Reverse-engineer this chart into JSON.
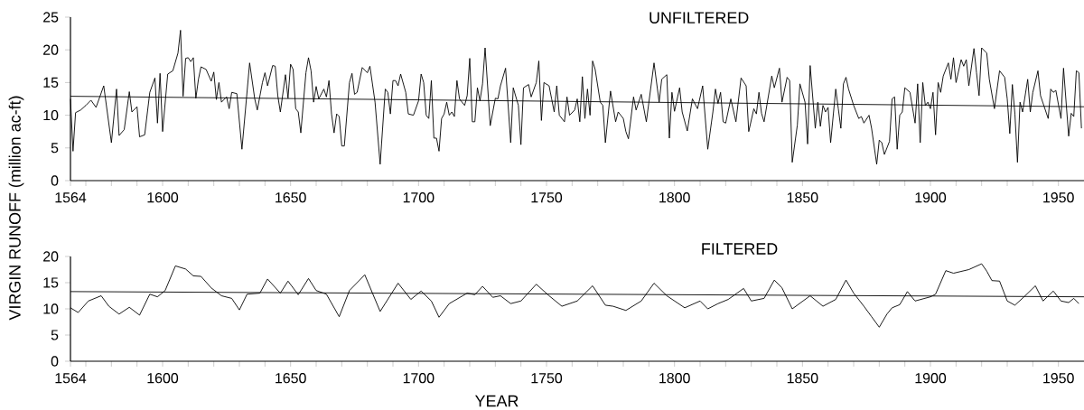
{
  "chart_data": [
    {
      "type": "line",
      "title": "UNFILTERED",
      "ylabel": "VIRGIN RUNOFF (million ac-ft)",
      "xlim": [
        1564,
        1960
      ],
      "ylim": [
        0,
        25
      ],
      "xticks": [
        1564,
        {
          "value": 1570,
          "label": null
        },
        {
          "value": 1580,
          "label": null
        },
        {
          "value": 1590,
          "label": null
        },
        1600,
        {
          "value": 1610,
          "label": null
        },
        {
          "value": 1620,
          "label": null
        },
        {
          "value": 1630,
          "label": null
        },
        {
          "value": 1640,
          "label": null
        },
        1650,
        {
          "value": 1660,
          "label": null
        },
        {
          "value": 1670,
          "label": null
        },
        {
          "value": 1680,
          "label": null
        },
        {
          "value": 1690,
          "label": null
        },
        1700,
        {
          "value": 1710,
          "label": null
        },
        {
          "value": 1720,
          "label": null
        },
        {
          "value": 1730,
          "label": null
        },
        {
          "value": 1740,
          "label": null
        },
        1750,
        {
          "value": 1760,
          "label": null
        },
        {
          "value": 1770,
          "label": null
        },
        {
          "value": 1780,
          "label": null
        },
        {
          "value": 1790,
          "label": null
        },
        1800,
        {
          "value": 1810,
          "label": null
        },
        {
          "value": 1820,
          "label": null
        },
        {
          "value": 1830,
          "label": null
        },
        {
          "value": 1840,
          "label": null
        },
        1850,
        {
          "value": 1860,
          "label": null
        },
        {
          "value": 1870,
          "label": null
        },
        {
          "value": 1880,
          "label": null
        },
        {
          "value": 1890,
          "label": null
        },
        1900,
        {
          "value": 1910,
          "label": null
        },
        {
          "value": 1920,
          "label": null
        },
        {
          "value": 1930,
          "label": null
        },
        {
          "value": 1940,
          "label": null
        },
        1950
      ],
      "yticks": [
        0,
        5,
        10,
        15,
        20,
        25
      ],
      "marker": "none",
      "line_style": "solid",
      "series": [
        {
          "color": "#000000",
          "x": [
            1564,
            1565,
            1566,
            1568,
            1570,
            1572,
            1574,
            1577,
            1580,
            1582,
            1583,
            1585,
            1587,
            1588,
            1590,
            1591,
            1593,
            1595,
            1597,
            1598,
            1599,
            1600,
            1602,
            1604,
            1606,
            1607,
            1608,
            1609,
            1610,
            1611,
            1612,
            1613,
            1614,
            1615,
            1617,
            1619,
            1620,
            1621,
            1622,
            1623,
            1625,
            1626,
            1627,
            1629,
            1631,
            1634,
            1636,
            1637,
            1639,
            1640,
            1641,
            1643,
            1644,
            1645,
            1646,
            1648,
            1649,
            1650,
            1651,
            1652,
            1653,
            1654,
            1656,
            1657,
            1658,
            1659,
            1660,
            1661,
            1663,
            1664,
            1665,
            1666,
            1667,
            1668,
            1669,
            1670,
            1671,
            1673,
            1674,
            1675,
            1676,
            1678,
            1680,
            1681,
            1683,
            1685,
            1687,
            1688,
            1689,
            1690,
            1691,
            1692,
            1693,
            1695,
            1696,
            1698,
            1700,
            1701,
            1702,
            1703,
            1704,
            1705,
            1706,
            1707,
            1708,
            1709,
            1710,
            1711,
            1712,
            1713,
            1714,
            1715,
            1716,
            1718,
            1719,
            1720,
            1721,
            1722,
            1723,
            1724,
            1725,
            1726,
            1728,
            1730,
            1731,
            1732,
            1734,
            1736,
            1737,
            1739,
            1740,
            1741,
            1743,
            1744,
            1746,
            1747,
            1748,
            1749,
            1751,
            1752,
            1753,
            1754,
            1755,
            1757,
            1758,
            1759,
            1761,
            1762,
            1763,
            1764,
            1765,
            1766,
            1767,
            1768,
            1769,
            1771,
            1772,
            1773,
            1775,
            1777,
            1778,
            1780,
            1781,
            1782,
            1784,
            1785,
            1787,
            1789,
            1790,
            1792,
            1794,
            1795,
            1797,
            1798,
            1799,
            1800,
            1802,
            1803,
            1805,
            1807,
            1809,
            1811,
            1813,
            1815,
            1816,
            1817,
            1818,
            1819,
            1820,
            1822,
            1824,
            1826,
            1828,
            1829,
            1831,
            1832,
            1833,
            1834,
            1835,
            1838,
            1839,
            1841,
            1842,
            1844,
            1845,
            1846,
            1848,
            1849,
            1851,
            1852,
            1853,
            1855,
            1856,
            1857,
            1858,
            1859,
            1860,
            1861,
            1863,
            1864,
            1865,
            1866,
            1867,
            1868,
            1870,
            1872,
            1873,
            1874,
            1876,
            1877,
            1879,
            1880,
            1881,
            1882,
            1884,
            1885,
            1886,
            1887,
            1888,
            1889,
            1890,
            1892,
            1894,
            1895,
            1896,
            1897,
            1898,
            1899,
            1900,
            1901,
            1902,
            1903,
            1904,
            1905,
            1907,
            1908,
            1909,
            1910,
            1912,
            1913,
            1914,
            1915,
            1917,
            1918,
            1919,
            1920,
            1922,
            1923,
            1925,
            1927,
            1929,
            1930,
            1931,
            1932,
            1933,
            1934,
            1935,
            1936,
            1938,
            1939,
            1940,
            1942,
            1943,
            1946,
            1947,
            1948,
            1949,
            1951,
            1952,
            1954,
            1955,
            1956,
            1957,
            1958,
            1959
          ],
          "values": [
            12.5,
            4.5,
            10.4,
            10.8,
            11.5,
            12.3,
            11.2,
            14.5,
            5.8,
            14.0,
            6.9,
            7.8,
            13.6,
            10.5,
            11.3,
            6.7,
            7.0,
            13.5,
            15.7,
            8.8,
            16.4,
            7.5,
            16.3,
            16.8,
            19.5,
            23.0,
            12.9,
            18.7,
            18.8,
            18.2,
            18.8,
            12.6,
            15.5,
            17.4,
            17.0,
            15.2,
            16.6,
            12.4,
            15.0,
            12.0,
            12.8,
            11.0,
            13.5,
            13.3,
            4.8,
            18.0,
            12.5,
            10.8,
            15.0,
            16.5,
            14.5,
            17.6,
            17.5,
            13.0,
            10.5,
            16.2,
            12.6,
            17.8,
            17.0,
            11.0,
            10.5,
            7.3,
            16.5,
            18.8,
            16.8,
            12.0,
            14.4,
            12.5,
            14.0,
            12.8,
            15.3,
            10.2,
            7.3,
            10.2,
            9.8,
            5.3,
            5.3,
            15.0,
            16.4,
            13.2,
            13.5,
            17.3,
            16.5,
            17.5,
            12.0,
            2.5,
            14.0,
            13.5,
            10.2,
            15.3,
            15.3,
            14.5,
            16.3,
            13.5,
            10.2,
            10.0,
            12.2,
            16.3,
            15.0,
            10.0,
            9.5,
            15.3,
            6.5,
            6.5,
            4.5,
            9.5,
            10.2,
            12.0,
            10.0,
            10.5,
            9.8,
            15.3,
            12.5,
            11.5,
            13.0,
            18.7,
            9.0,
            9.0,
            14.2,
            12.2,
            14.8,
            20.3,
            8.4,
            12.6,
            12.5,
            14.5,
            17.2,
            5.8,
            14.2,
            11.5,
            5.5,
            14.2,
            14.7,
            12.8,
            15.0,
            18.3,
            9.2,
            15.0,
            14.5,
            12.5,
            10.5,
            14.5,
            10.0,
            9.0,
            12.8,
            10.0,
            10.8,
            12.5,
            9.0,
            15.9,
            9.5,
            14.0,
            10.0,
            18.3,
            17.0,
            12.0,
            11.5,
            5.8,
            13.7,
            9.0,
            10.5,
            9.5,
            7.5,
            6.4,
            12.8,
            10.8,
            13.2,
            9.0,
            12.0,
            18.0,
            12.0,
            15.5,
            16.2,
            6.5,
            13.5,
            10.6,
            14.2,
            10.5,
            7.6,
            12.5,
            11.0,
            14.5,
            4.8,
            10.5,
            14.0,
            11.8,
            13.5,
            9.0,
            8.8,
            12.5,
            9.0,
            15.7,
            14.5,
            7.5,
            11.0,
            10.2,
            13.5,
            10.3,
            9.0,
            16.0,
            14.2,
            17.2,
            12.0,
            15.8,
            15.3,
            2.8,
            8.5,
            14.8,
            12.0,
            5.6,
            17.6,
            8.0,
            12.0,
            8.3,
            11.5,
            10.5,
            11.2,
            5.8,
            14.0,
            11.0,
            8.0,
            14.8,
            15.8,
            14.0,
            11.5,
            9.5,
            9.8,
            8.8,
            10.0,
            8.0,
            2.5,
            6.2,
            5.8,
            4.0,
            6.0,
            12.5,
            12.8,
            4.8,
            10.0,
            10.5,
            14.2,
            13.5,
            8.8,
            14.8,
            5.8,
            15.0,
            11.5,
            12.0,
            11.0,
            13.5,
            7.0,
            15.0,
            13.5,
            16.0,
            18.0,
            15.5,
            18.8,
            15.0,
            18.5,
            17.5,
            18.5,
            14.5,
            20.2,
            16.5,
            13.0,
            20.3,
            19.5,
            15.5,
            11.0,
            16.8,
            15.8,
            12.5,
            7.2,
            14.7,
            10.2,
            2.8,
            12.0,
            10.5,
            15.5,
            10.5,
            13.5,
            16.8,
            13.0,
            9.5,
            14.0,
            13.5,
            13.8,
            9.5,
            17.2,
            6.8,
            10.3,
            9.8,
            16.8,
            16.5,
            8.0
          ]
        },
        {
          "type": "line",
          "color": "#000000",
          "x": [
            1564,
            1960
          ],
          "values": [
            12.9,
            11.3
          ]
        }
      ]
    },
    {
      "type": "line",
      "title": "FILTERED",
      "xlabel": "YEAR",
      "xlim": [
        1564,
        1960
      ],
      "ylim": [
        0,
        20
      ],
      "xticks": [
        1564,
        {
          "value": 1570,
          "label": null
        },
        {
          "value": 1580,
          "label": null
        },
        {
          "value": 1590,
          "label": null
        },
        1600,
        {
          "value": 1610,
          "label": null
        },
        {
          "value": 1620,
          "label": null
        },
        {
          "value": 1630,
          "label": null
        },
        {
          "value": 1640,
          "label": null
        },
        1650,
        {
          "value": 1660,
          "label": null
        },
        {
          "value": 1670,
          "label": null
        },
        {
          "value": 1680,
          "label": null
        },
        {
          "value": 1690,
          "label": null
        },
        1700,
        {
          "value": 1710,
          "label": null
        },
        {
          "value": 1720,
          "label": null
        },
        {
          "value": 1730,
          "label": null
        },
        {
          "value": 1740,
          "label": null
        },
        1750,
        {
          "value": 1760,
          "label": null
        },
        {
          "value": 1770,
          "label": null
        },
        {
          "value": 1780,
          "label": null
        },
        {
          "value": 1790,
          "label": null
        },
        1800,
        {
          "value": 1810,
          "label": null
        },
        {
          "value": 1820,
          "label": null
        },
        {
          "value": 1830,
          "label": null
        },
        {
          "value": 1840,
          "label": null
        },
        1850,
        {
          "value": 1860,
          "label": null
        },
        {
          "value": 1870,
          "label": null
        },
        {
          "value": 1880,
          "label": null
        },
        {
          "value": 1890,
          "label": null
        },
        1900,
        {
          "value": 1910,
          "label": null
        },
        {
          "value": 1920,
          "label": null
        },
        {
          "value": 1930,
          "label": null
        },
        {
          "value": 1940,
          "label": null
        },
        1950
      ],
      "yticks": [
        0,
        5,
        10,
        15,
        20
      ],
      "marker": "none",
      "line_style": "solid",
      "series": [
        {
          "color": "#000000",
          "x": [
            1564,
            1567,
            1571,
            1576,
            1579,
            1583,
            1587,
            1591,
            1595,
            1598,
            1601,
            1605,
            1609,
            1612,
            1615,
            1619,
            1623,
            1627,
            1630,
            1633,
            1638,
            1641,
            1646,
            1649,
            1653,
            1657,
            1660,
            1664,
            1669,
            1673,
            1679,
            1685,
            1692,
            1697,
            1701,
            1705,
            1708,
            1712,
            1719,
            1722,
            1725,
            1729,
            1732,
            1736,
            1740,
            1746,
            1751,
            1756,
            1762,
            1768,
            1773,
            1776,
            1781,
            1787,
            1792,
            1797,
            1804,
            1810,
            1813,
            1817,
            1821,
            1827,
            1830,
            1835,
            1839,
            1842,
            1846,
            1853,
            1858,
            1863,
            1867,
            1870,
            1874,
            1877,
            1880,
            1883,
            1885,
            1888,
            1891,
            1894,
            1900,
            1902,
            1906,
            1909,
            1915,
            1920,
            1922,
            1924,
            1927,
            1930,
            1933,
            1937,
            1941,
            1944,
            1948,
            1951,
            1954,
            1956,
            1958
          ],
          "values": [
            10.2,
            9.3,
            11.5,
            12.5,
            10.5,
            9.0,
            10.3,
            8.8,
            12.8,
            12.3,
            13.5,
            18.2,
            17.6,
            16.3,
            16.2,
            14.0,
            12.5,
            12.0,
            9.8,
            12.8,
            13.0,
            15.7,
            13.0,
            15.3,
            12.7,
            15.8,
            13.5,
            12.8,
            8.5,
            13.5,
            16.5,
            9.5,
            14.9,
            11.8,
            13.4,
            11.5,
            8.4,
            11.0,
            13.0,
            12.7,
            14.3,
            12.2,
            12.5,
            11.0,
            11.5,
            14.7,
            12.5,
            10.5,
            11.5,
            14.4,
            10.7,
            10.5,
            9.7,
            11.5,
            14.9,
            12.5,
            10.2,
            11.5,
            10.0,
            11.0,
            11.8,
            13.9,
            11.5,
            12.0,
            15.5,
            14.0,
            10.0,
            12.5,
            10.5,
            11.8,
            15.5,
            13.0,
            10.5,
            8.5,
            6.5,
            9.0,
            10.2,
            10.8,
            13.3,
            11.5,
            12.3,
            12.8,
            17.3,
            16.8,
            17.5,
            18.6,
            17.2,
            15.4,
            15.3,
            11.5,
            10.7,
            12.5,
            14.4,
            11.5,
            13.4,
            11.5,
            11.2,
            12.0,
            11.0
          ]
        },
        {
          "type": "line",
          "color": "#000000",
          "x": [
            1564,
            1960
          ],
          "values": [
            13.3,
            12.3
          ]
        }
      ]
    }
  ]
}
